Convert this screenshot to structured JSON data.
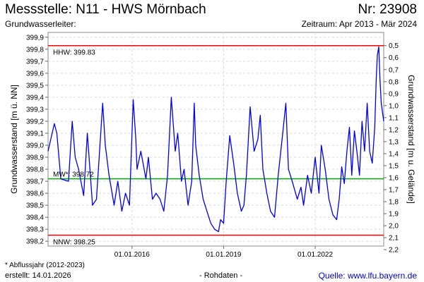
{
  "header": {
    "title": "Messstelle: N11 - HWS Mörnbach",
    "number": "Nr: 23908",
    "subtitle": "Grundwasserleiter:",
    "period": "Zeitraum: Apr 2013 - Mär 2024"
  },
  "footer": {
    "footnote": "* Abflussjahr (2012-2023)",
    "created": "erstellt:  14.01.2026",
    "rawdata": "- Rohdaten -",
    "source": "Quelle: www.lfu.bayern.de"
  },
  "chart_data": {
    "type": "line",
    "ylabel": "Grundwasserstand [m ü. NN]",
    "ylabel_right": "Grundwasserstand [m u. Gelände]",
    "ylim": [
      398.16,
      399.94
    ],
    "yticks": [
      "398,2",
      "398,3",
      "398,4",
      "398,5",
      "398,6",
      "398,7",
      "398,8",
      "398,9",
      "399,0",
      "399,1",
      "399,2",
      "399,3",
      "399,4",
      "399,5",
      "399,6",
      "399,7",
      "399,8",
      "399,9"
    ],
    "right_axis_surface_level": 400.33,
    "yticks_right": [
      "0,5",
      "0,6",
      "0,7",
      "0,8",
      "0,9",
      "1,0",
      "1,1",
      "1,2",
      "1,3",
      "1,4",
      "1,5",
      "1,6",
      "1,7",
      "1,8",
      "1,9",
      "2,0",
      "2,1",
      "2,2"
    ],
    "xlim": [
      "2013-04-01",
      "2024-03-31"
    ],
    "xticks": [
      {
        "date": "2016-01-01",
        "label": "01.01.2016"
      },
      {
        "date": "2019-01-01",
        "label": "01.01.2019"
      },
      {
        "date": "2022-01-01",
        "label": "01.01.2022"
      }
    ],
    "grid": true,
    "reference_lines": [
      {
        "label": "HHW: 399.83",
        "value": 399.83,
        "color": "#ff0000"
      },
      {
        "label": "MW*: 398.72",
        "value": 398.72,
        "color": "#00aa00"
      },
      {
        "label": "NNW: 398.25",
        "value": 398.25,
        "color": "#ff0000"
      }
    ],
    "series": [
      {
        "color": "#0000ee",
        "x": [
          "2013-04-01",
          "2013-06-15",
          "2013-07-15",
          "2013-09-01",
          "2013-12-01",
          "2014-01-15",
          "2014-02-20",
          "2014-04-01",
          "2014-06-01",
          "2014-07-15",
          "2014-09-15",
          "2014-11-01",
          "2015-01-15",
          "2015-02-15",
          "2015-04-01",
          "2015-06-01",
          "2015-07-15",
          "2015-09-01",
          "2015-10-15",
          "2015-12-01",
          "2016-01-15",
          "2016-02-15",
          "2016-03-01",
          "2016-04-15",
          "2016-06-15",
          "2016-07-15",
          "2016-09-01",
          "2016-10-15",
          "2016-12-01",
          "2017-01-15",
          "2017-03-01",
          "2017-04-15",
          "2017-06-01",
          "2017-07-01",
          "2017-08-15",
          "2017-09-15",
          "2017-11-01",
          "2017-12-15",
          "2018-01-15",
          "2018-02-01",
          "2018-03-15",
          "2018-05-01",
          "2018-06-15",
          "2018-08-01",
          "2018-09-15",
          "2018-11-01",
          "2018-11-25",
          "2019-01-01",
          "2019-02-01",
          "2019-03-15",
          "2019-05-01",
          "2019-06-15",
          "2019-08-01",
          "2019-09-01",
          "2019-10-01",
          "2019-11-15",
          "2020-01-01",
          "2020-02-15",
          "2020-03-15",
          "2020-04-15",
          "2020-06-01",
          "2020-07-15",
          "2020-09-01",
          "2020-10-15",
          "2020-12-01",
          "2021-01-15",
          "2021-02-15",
          "2021-04-01",
          "2021-06-01",
          "2021-07-15",
          "2021-08-15",
          "2021-10-01",
          "2021-11-15",
          "2022-01-01",
          "2022-02-15",
          "2022-03-15",
          "2022-05-01",
          "2022-06-15",
          "2022-08-01",
          "2022-09-15",
          "2022-10-15",
          "2022-11-15",
          "2022-12-15",
          "2023-01-15",
          "2023-02-15",
          "2023-03-15",
          "2023-04-15",
          "2023-05-15",
          "2023-06-15",
          "2023-07-15",
          "2023-08-15",
          "2023-09-15",
          "2023-10-15",
          "2023-11-15",
          "2023-12-15",
          "2024-01-01",
          "2024-01-15",
          "2024-02-01",
          "2024-02-15",
          "2024-03-01",
          "2024-03-31"
        ],
        "y": [
          398.95,
          399.18,
          399.1,
          398.72,
          398.7,
          399.2,
          398.9,
          398.8,
          398.58,
          399.1,
          398.5,
          398.55,
          399.35,
          399.0,
          398.75,
          398.5,
          398.7,
          398.45,
          398.6,
          398.5,
          399.38,
          399.05,
          398.8,
          398.95,
          398.72,
          398.9,
          398.55,
          398.6,
          398.55,
          398.45,
          398.75,
          399.4,
          398.95,
          399.1,
          398.7,
          398.8,
          398.5,
          398.7,
          399.35,
          399.0,
          398.75,
          398.55,
          398.45,
          398.35,
          398.3,
          398.28,
          398.38,
          398.35,
          398.7,
          399.08,
          398.85,
          398.6,
          398.45,
          398.5,
          398.75,
          399.32,
          398.95,
          399.05,
          399.25,
          398.8,
          398.6,
          398.45,
          398.4,
          398.75,
          399.05,
          399.35,
          398.8,
          398.7,
          398.55,
          398.65,
          398.5,
          398.75,
          398.6,
          398.9,
          398.6,
          399.0,
          398.8,
          398.55,
          398.42,
          398.38,
          398.55,
          398.82,
          398.68,
          398.95,
          399.15,
          398.75,
          399.12,
          398.95,
          398.75,
          399.2,
          398.95,
          399.35,
          398.95,
          398.85,
          399.15,
          399.55,
          399.75,
          399.82,
          399.55,
          399.35,
          399.2
        ]
      }
    ]
  }
}
